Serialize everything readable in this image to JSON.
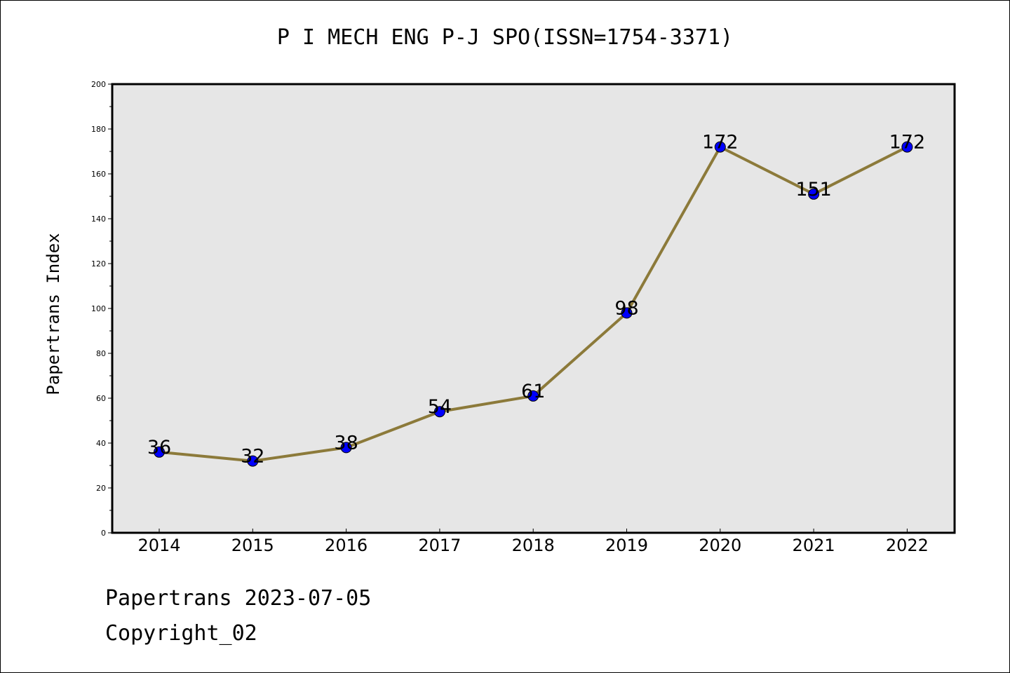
{
  "chart_data": {
    "type": "line",
    "title": "P I MECH ENG P-J SPO(ISSN=1754-3371)",
    "xlabel": "",
    "ylabel": "Papertrans Index",
    "categories": [
      "2014",
      "2015",
      "2016",
      "2017",
      "2018",
      "2019",
      "2020",
      "2021",
      "2022"
    ],
    "values": [
      36,
      32,
      38,
      54,
      61,
      98,
      172,
      151,
      172
    ],
    "data_labels": [
      "36",
      "32",
      "38",
      "54",
      "61",
      "98",
      "172",
      "151",
      "172"
    ],
    "ylim": [
      0,
      200
    ],
    "yticks": [
      0,
      20,
      40,
      60,
      80,
      100,
      120,
      140,
      160,
      180,
      200
    ],
    "grid": false,
    "line_color": "#8c7a3a",
    "marker_color": "#0000ff",
    "plot_background": "#e6e6e6"
  },
  "footer": {
    "date": "Papertrans 2023-07-05",
    "copyright": "Copyright_02"
  }
}
